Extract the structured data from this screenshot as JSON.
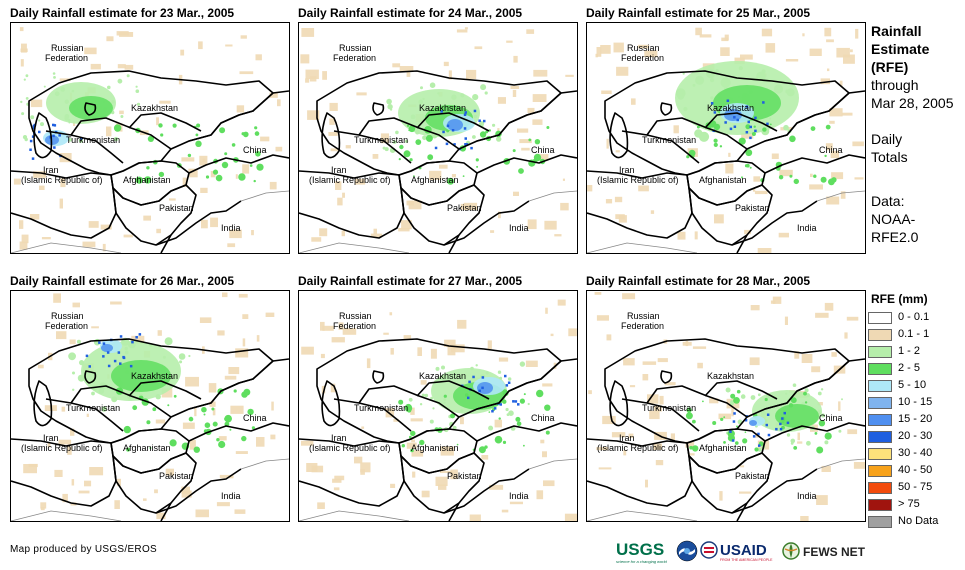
{
  "panels": [
    {
      "title": "Daily Rainfall estimate for 23 Mar., 2005"
    },
    {
      "title": "Daily Rainfall estimate for 24 Mar., 2005"
    },
    {
      "title": "Daily Rainfall estimate for 25 Mar., 2005"
    },
    {
      "title": "Daily Rainfall estimate for 26 Mar., 2005"
    },
    {
      "title": "Daily Rainfall estimate for 27 Mar., 2005"
    },
    {
      "title": "Daily Rainfall estimate for 28 Mar., 2005"
    }
  ],
  "map_labels": {
    "russia_1": "Russian",
    "russia_2": "Federation",
    "kazakhstan": "Kazakhstan",
    "turkmenistan": "Turkmenistan",
    "iran_1": "Iran",
    "iran_2": "(Islamic Republic of)",
    "afghanistan": "Afghanistan",
    "pakistan": "Pakistan",
    "china": "China",
    "india": "India"
  },
  "side_text": {
    "line1": "Rainfall",
    "line2": "Estimate",
    "line3": "(RFE)",
    "line4": "through",
    "line5": "Mar 28, 2005",
    "line6": "Daily",
    "line7": "Totals",
    "line8": "Data:",
    "line9": "NOAA-",
    "line10": "RFE2.0"
  },
  "legend": {
    "title": "RFE (mm)",
    "items": [
      {
        "label": "0 - 0.1",
        "color": "#ffffff"
      },
      {
        "label": "0.1 - 1",
        "color": "#efd9b4"
      },
      {
        "label": "1 - 2",
        "color": "#b6eeab"
      },
      {
        "label": "2 - 5",
        "color": "#5fde5f"
      },
      {
        "label": "5 - 10",
        "color": "#aee8f7"
      },
      {
        "label": "10 - 15",
        "color": "#7fb4ef"
      },
      {
        "label": "15 - 20",
        "color": "#4f8ff0"
      },
      {
        "label": "20 - 30",
        "color": "#1f5fe0"
      },
      {
        "label": "30 - 40",
        "color": "#fde27b"
      },
      {
        "label": "40 - 50",
        "color": "#f7a21b"
      },
      {
        "label": "50 - 75",
        "color": "#f24b0d"
      },
      {
        "label": "> 75",
        "color": "#a0140e"
      },
      {
        "label": "No Data",
        "color": "#a0a0a0"
      }
    ]
  },
  "credit": "Map produced by USGS/EROS",
  "logos": {
    "usgs": "USGS",
    "usgs_tagline": "science for a changing world",
    "usaid": "USAID",
    "usaid_tagline": "FROM THE AMERICAN PEOPLE",
    "fews": "FEWS NET"
  },
  "rain_levels": [
    {
      "green_light": 0.25,
      "green": 0.3,
      "blue": 0.35
    },
    {
      "green_light": 0.35,
      "green": 0.35,
      "blue": 0.45
    },
    {
      "green_light": 0.7,
      "green": 0.6,
      "blue": 0.5
    },
    {
      "green_light": 0.5,
      "green": 0.5,
      "blue": 0.25
    },
    {
      "green_light": 0.3,
      "green": 0.4,
      "blue": 0.45
    },
    {
      "green_light": 0.25,
      "green": 0.3,
      "blue": 0.15
    }
  ]
}
